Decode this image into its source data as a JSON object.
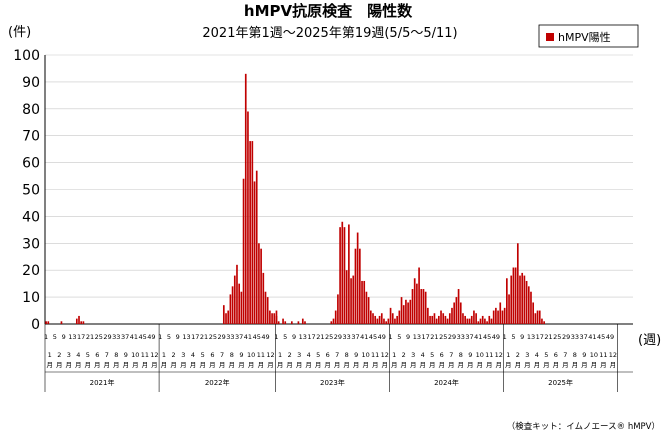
{
  "chart_data": {
    "type": "bar",
    "title": "hMPV抗原検査　陽性数",
    "subtitle": "2021年第1週～2025年第19週(5/5～5/11)",
    "y_unit": "(件)",
    "x_unit": "(週)",
    "ylim": [
      0,
      100
    ],
    "y_ticks": [
      "0",
      "10",
      "20",
      "30",
      "40",
      "50",
      "60",
      "70",
      "80",
      "90",
      "100"
    ],
    "legend": "top-right",
    "series": [
      {
        "name": "hMPV陽性",
        "color": "#c00000",
        "years": [
          {
            "year": "2021年",
            "values": [
              1,
              1,
              0,
              0,
              0,
              0,
              0,
              1,
              0,
              0,
              0,
              0,
              0,
              0,
              2,
              3,
              1,
              1,
              0,
              0,
              0,
              0,
              0,
              0,
              0,
              0,
              0,
              0,
              0,
              0,
              0,
              0,
              0,
              0,
              0,
              0,
              0,
              0,
              0,
              0,
              0,
              0,
              0,
              0,
              0,
              0,
              0,
              0,
              0,
              0,
              0,
              0,
              0
            ]
          },
          {
            "year": "2022年",
            "values": [
              0,
              0,
              0,
              0,
              0,
              0,
              0,
              0,
              0,
              0,
              0,
              0,
              0,
              0,
              0,
              0,
              0,
              0,
              0,
              0,
              0,
              0,
              0,
              0,
              0,
              0,
              0,
              0,
              0,
              7,
              4,
              5,
              11,
              14,
              18,
              22,
              15,
              12,
              54,
              93,
              79,
              68,
              68,
              53,
              57,
              30,
              28,
              19,
              12,
              10,
              5,
              4,
              4,
              5
            ]
          },
          {
            "year": "2023年",
            "values": [
              3,
              1,
              0,
              2,
              1,
              0,
              0,
              1,
              0,
              0,
              1,
              0,
              2,
              1,
              0,
              0,
              0,
              0,
              0,
              0,
              0,
              0,
              0,
              0,
              0,
              1,
              2,
              5,
              11,
              36,
              38,
              36,
              20,
              37,
              17,
              18,
              28,
              34,
              28,
              16,
              16,
              12,
              10,
              5,
              4,
              3,
              2,
              3,
              4,
              2,
              1,
              2
            ]
          },
          {
            "year": "2024年",
            "values": [
              6,
              4,
              2,
              3,
              5,
              10,
              7,
              9,
              8,
              9,
              13,
              17,
              15,
              21,
              13,
              13,
              12,
              6,
              3,
              3,
              4,
              2,
              3,
              5,
              4,
              3,
              2,
              4,
              6,
              8,
              10,
              13,
              8,
              4,
              3,
              2,
              2,
              3,
              5,
              4,
              1,
              2,
              3,
              2,
              1,
              3,
              2,
              5,
              6,
              5,
              8,
              5
            ]
          },
          {
            "year": "2025年",
            "values": [
              6,
              17,
              11,
              18,
              21,
              21,
              30,
              18,
              19,
              18,
              16,
              14,
              12,
              8,
              4,
              5,
              5,
              2,
              1
            ]
          }
        ]
      }
    ],
    "week_labels": [
      "1",
      "5",
      "9",
      "13",
      "17",
      "21",
      "25",
      "29",
      "33",
      "37",
      "41",
      "45",
      "49"
    ],
    "month_labels": [
      "1",
      "2",
      "3",
      "4",
      "5",
      "6",
      "7",
      "8",
      "9",
      "10",
      "11",
      "12"
    ],
    "month_suffix": "月",
    "note": "（検査キット：イムノエース® hMPV）"
  }
}
